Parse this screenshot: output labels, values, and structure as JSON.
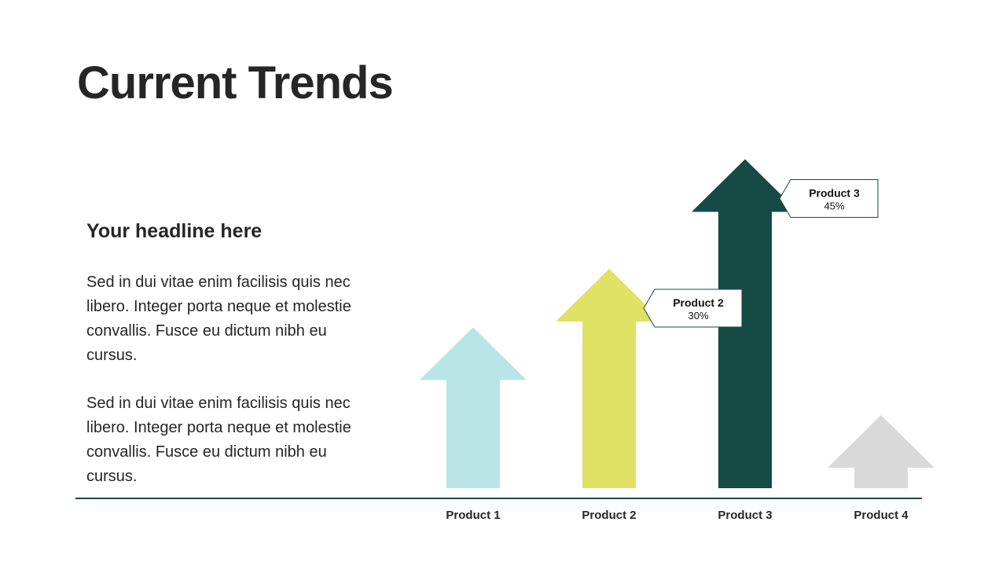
{
  "slide": {
    "title": "Current Trends",
    "headline": "Your headline here",
    "paragraphs": [
      "Sed in dui vitae enim facilisis quis nec libero. Integer porta neque et molestie convallis. Fusce eu dictum nibh eu cursus.",
      "Sed in dui vitae enim facilisis quis nec libero. Integer porta neque et molestie convallis. Fusce eu dictum nibh eu cursus."
    ]
  },
  "chart_data": {
    "type": "bar",
    "categories": [
      "Product 1",
      "Product 2",
      "Product 3",
      "Product 4"
    ],
    "values": [
      22,
      30,
      45,
      10
    ],
    "colors": [
      "#b9e4e6",
      "#e0e265",
      "#164a45",
      "#d9d9d9"
    ],
    "callouts": [
      {
        "name": "Product 2",
        "value": "30%"
      },
      {
        "name": "Product 3",
        "value": "45%"
      }
    ],
    "axis_color": "#164a45",
    "grid": false
  }
}
